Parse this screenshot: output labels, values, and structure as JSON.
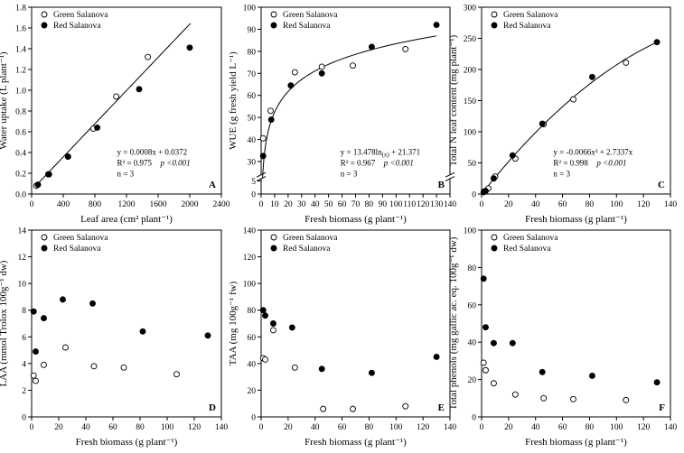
{
  "chart_data": [
    {
      "id": "A",
      "type": "scatter",
      "panel_label": "A",
      "xlabel": "Leaf area (cm² plant⁻¹)",
      "ylabel": "Water uptake (L plant⁻¹)",
      "xlim": [
        0,
        2400
      ],
      "ylim": [
        0,
        1.8
      ],
      "xticks": [
        0,
        400,
        800,
        1200,
        1600,
        2000,
        2400
      ],
      "yticks": [
        0,
        0.2,
        0.4,
        0.6,
        0.8,
        1.0,
        1.2,
        1.4,
        1.6,
        1.8
      ],
      "xtick_labels": [
        "0",
        "400",
        "800",
        "1200",
        "1600",
        "2000",
        "2400"
      ],
      "ytick_labels": [
        "0.0",
        "0.2",
        "0.4",
        "0.6",
        "0.8",
        "1.0",
        "1.2",
        "1.4",
        "1.6",
        "1.8"
      ],
      "legend": [
        "Green Salanova",
        "Red Salanova"
      ],
      "series": [
        {
          "name": "Green Salanova",
          "marker": "open",
          "x": [
            60,
            210,
            460,
            780,
            1070,
            1470
          ],
          "y": [
            0.08,
            0.19,
            0.36,
            0.63,
            0.94,
            1.32
          ]
        },
        {
          "name": "Red Salanova",
          "marker": "filled",
          "x": [
            80,
            220,
            460,
            830,
            1360,
            2000
          ],
          "y": [
            0.09,
            0.19,
            0.36,
            0.64,
            1.01,
            1.41
          ]
        }
      ],
      "fit": {
        "kind": "linear",
        "slope": 0.0008,
        "intercept": 0.0372,
        "x_range": [
          40,
          2010
        ]
      },
      "annotations": [
        "y = 0.0008x + 0.0372",
        "R² = 0.975",
        "p <0.001",
        "n = 3"
      ]
    },
    {
      "id": "B",
      "type": "scatter",
      "panel_label": "B",
      "xlabel": "Fresh biomass (g plant⁻¹)",
      "ylabel": "WUE (g fresh yield L⁻¹)",
      "xlim": [
        0,
        140
      ],
      "ylim": [
        0,
        100
      ],
      "axis_break": [
        5,
        25
      ],
      "xticks": [
        0,
        10,
        20,
        30,
        40,
        50,
        60,
        70,
        80,
        90,
        100,
        110,
        120,
        130,
        140
      ],
      "yticks": [
        0,
        5,
        30,
        40,
        50,
        60,
        70,
        80,
        90,
        100
      ],
      "xtick_labels": [
        "0",
        "10",
        "20",
        "30",
        "40",
        "50",
        "60",
        "70",
        "80",
        "90",
        "100",
        "110",
        "120",
        "130",
        "140"
      ],
      "ytick_labels": [
        "0",
        "5",
        "30",
        "40",
        "50",
        "60",
        "70",
        "80",
        "90",
        "100"
      ],
      "legend": [
        "Green Salanova",
        "Red Salanova"
      ],
      "series": [
        {
          "name": "Green Salanova",
          "marker": "open",
          "x": [
            1.5,
            7,
            25,
            45,
            68,
            107
          ],
          "y": [
            40.5,
            53,
            70.5,
            73,
            73.5,
            81
          ]
        },
        {
          "name": "Red Salanova",
          "marker": "filled",
          "x": [
            1.5,
            7.5,
            22,
            45,
            82,
            130
          ],
          "y": [
            32.5,
            49,
            64.5,
            70,
            82,
            92
          ]
        }
      ],
      "fit": {
        "kind": "log",
        "a": 13.478,
        "b": 21.371,
        "x_range": [
          1.1,
          130
        ]
      },
      "annotations": [
        "y = 13.478ln",
        "(x)",
        " + 21.371",
        "R² = 0.967",
        "p <0.001",
        "n = 3"
      ]
    },
    {
      "id": "C",
      "type": "scatter",
      "panel_label": "C",
      "xlabel": "Fresh biomass (g plant⁻¹)",
      "ylabel": "Total N leaf content (mg plant⁻¹)",
      "xlim": [
        0,
        140
      ],
      "ylim": [
        0,
        300
      ],
      "xticks": [
        0,
        20,
        40,
        60,
        80,
        100,
        120,
        140
      ],
      "yticks": [
        0,
        50,
        100,
        150,
        200,
        250,
        300
      ],
      "xtick_labels": [
        "0",
        "20",
        "40",
        "60",
        "80",
        "100",
        "120",
        "140"
      ],
      "ytick_labels": [
        "0",
        "50",
        "100",
        "150",
        "200",
        "250",
        "300"
      ],
      "legend": [
        "Green Salanova",
        "Red Salanova"
      ],
      "series": [
        {
          "name": "Green Salanova",
          "marker": "open",
          "x": [
            2,
            5,
            10,
            25,
            46,
            68,
            107
          ],
          "y": [
            4,
            9,
            28,
            57,
            112,
            152,
            211
          ]
        },
        {
          "name": "Red Salanova",
          "marker": "filled",
          "x": [
            1.5,
            3,
            9,
            23,
            45,
            82,
            130
          ],
          "y": [
            3,
            5,
            25,
            62,
            113,
            188,
            244
          ]
        }
      ],
      "fit": {
        "kind": "quadratic",
        "a": -0.0066,
        "b": 2.7337,
        "c": 0,
        "x_range": [
          0,
          130
        ]
      },
      "annotations": [
        "y = -0.0066x² + 2.7337x",
        "R² = 0.998",
        "p <0.001",
        "n = 3"
      ]
    },
    {
      "id": "D",
      "type": "scatter",
      "panel_label": "D",
      "xlabel": "Fresh biomass (g plant⁻¹)",
      "ylabel": "LAA (mmol Trolox 100g⁻¹ dw)",
      "xlim": [
        0,
        140
      ],
      "ylim": [
        0,
        14
      ],
      "xticks": [
        0,
        20,
        40,
        60,
        80,
        100,
        120,
        140
      ],
      "yticks": [
        0,
        2,
        4,
        6,
        8,
        10,
        12,
        14
      ],
      "xtick_labels": [
        "0",
        "20",
        "40",
        "60",
        "80",
        "100",
        "120",
        "140"
      ],
      "ytick_labels": [
        "0",
        "2",
        "4",
        "6",
        "8",
        "10",
        "12",
        "14"
      ],
      "legend": [
        "Green Salanova",
        "Red Salanova"
      ],
      "series": [
        {
          "name": "Green Salanova",
          "marker": "open",
          "x": [
            1.5,
            3,
            9,
            25,
            46,
            68,
            107
          ],
          "y": [
            3.1,
            2.7,
            3.9,
            5.2,
            3.8,
            3.7,
            3.2
          ]
        },
        {
          "name": "Red Salanova",
          "marker": "filled",
          "x": [
            1.5,
            3,
            9,
            23,
            45,
            82,
            130
          ],
          "y": [
            7.9,
            4.9,
            7.4,
            8.8,
            8.5,
            6.4,
            6.1
          ]
        }
      ]
    },
    {
      "id": "E",
      "type": "scatter",
      "panel_label": "E",
      "xlabel": "Fresh biomass (g plant⁻¹)",
      "ylabel": "TAA (mg 100g⁻¹ fw)",
      "xlim": [
        0,
        140
      ],
      "ylim": [
        0,
        140
      ],
      "xticks": [
        0,
        20,
        40,
        60,
        80,
        100,
        120,
        140
      ],
      "yticks": [
        0,
        20,
        40,
        60,
        80,
        100,
        120,
        140
      ],
      "xtick_labels": [
        "0",
        "20",
        "40",
        "60",
        "80",
        "100",
        "120",
        "140"
      ],
      "ytick_labels": [
        "0",
        "20",
        "40",
        "60",
        "80",
        "100",
        "120",
        "140"
      ],
      "legend": [
        "Green Salanova",
        "Red Salanova"
      ],
      "series": [
        {
          "name": "Green Salanova",
          "marker": "open",
          "x": [
            1.5,
            3,
            9,
            25,
            46,
            68,
            107
          ],
          "y": [
            44,
            43,
            65,
            37,
            6,
            6,
            8
          ]
        },
        {
          "name": "Red Salanova",
          "marker": "filled",
          "x": [
            1.5,
            3,
            9,
            23,
            45,
            82,
            130
          ],
          "y": [
            80,
            76,
            70,
            67,
            36,
            33,
            45
          ]
        }
      ]
    },
    {
      "id": "F",
      "type": "scatter",
      "panel_label": "F",
      "xlabel": "Fresh biomass (g plant⁻¹)",
      "ylabel": "Total phenols (mg gallic ac. eq. 100g⁻¹ dw)",
      "xlim": [
        0,
        140
      ],
      "ylim": [
        0,
        100
      ],
      "xticks": [
        0,
        20,
        40,
        60,
        80,
        100,
        120,
        140
      ],
      "yticks": [
        0,
        20,
        40,
        60,
        80,
        100
      ],
      "xtick_labels": [
        "0",
        "20",
        "40",
        "60",
        "80",
        "100",
        "120",
        "140"
      ],
      "ytick_labels": [
        "0",
        "20",
        "40",
        "60",
        "80",
        "100"
      ],
      "legend": [
        "Green Salanova",
        "Red Salanova"
      ],
      "series": [
        {
          "name": "Green Salanova",
          "marker": "open",
          "x": [
            1.5,
            3,
            9,
            25,
            46,
            68,
            107
          ],
          "y": [
            29,
            25,
            18,
            12,
            10,
            9.5,
            9
          ]
        },
        {
          "name": "Red Salanova",
          "marker": "filled",
          "x": [
            1.5,
            3,
            9,
            23,
            45,
            82,
            130
          ],
          "y": [
            74,
            48,
            39.5,
            39.5,
            24,
            22,
            18.5
          ]
        }
      ]
    }
  ]
}
